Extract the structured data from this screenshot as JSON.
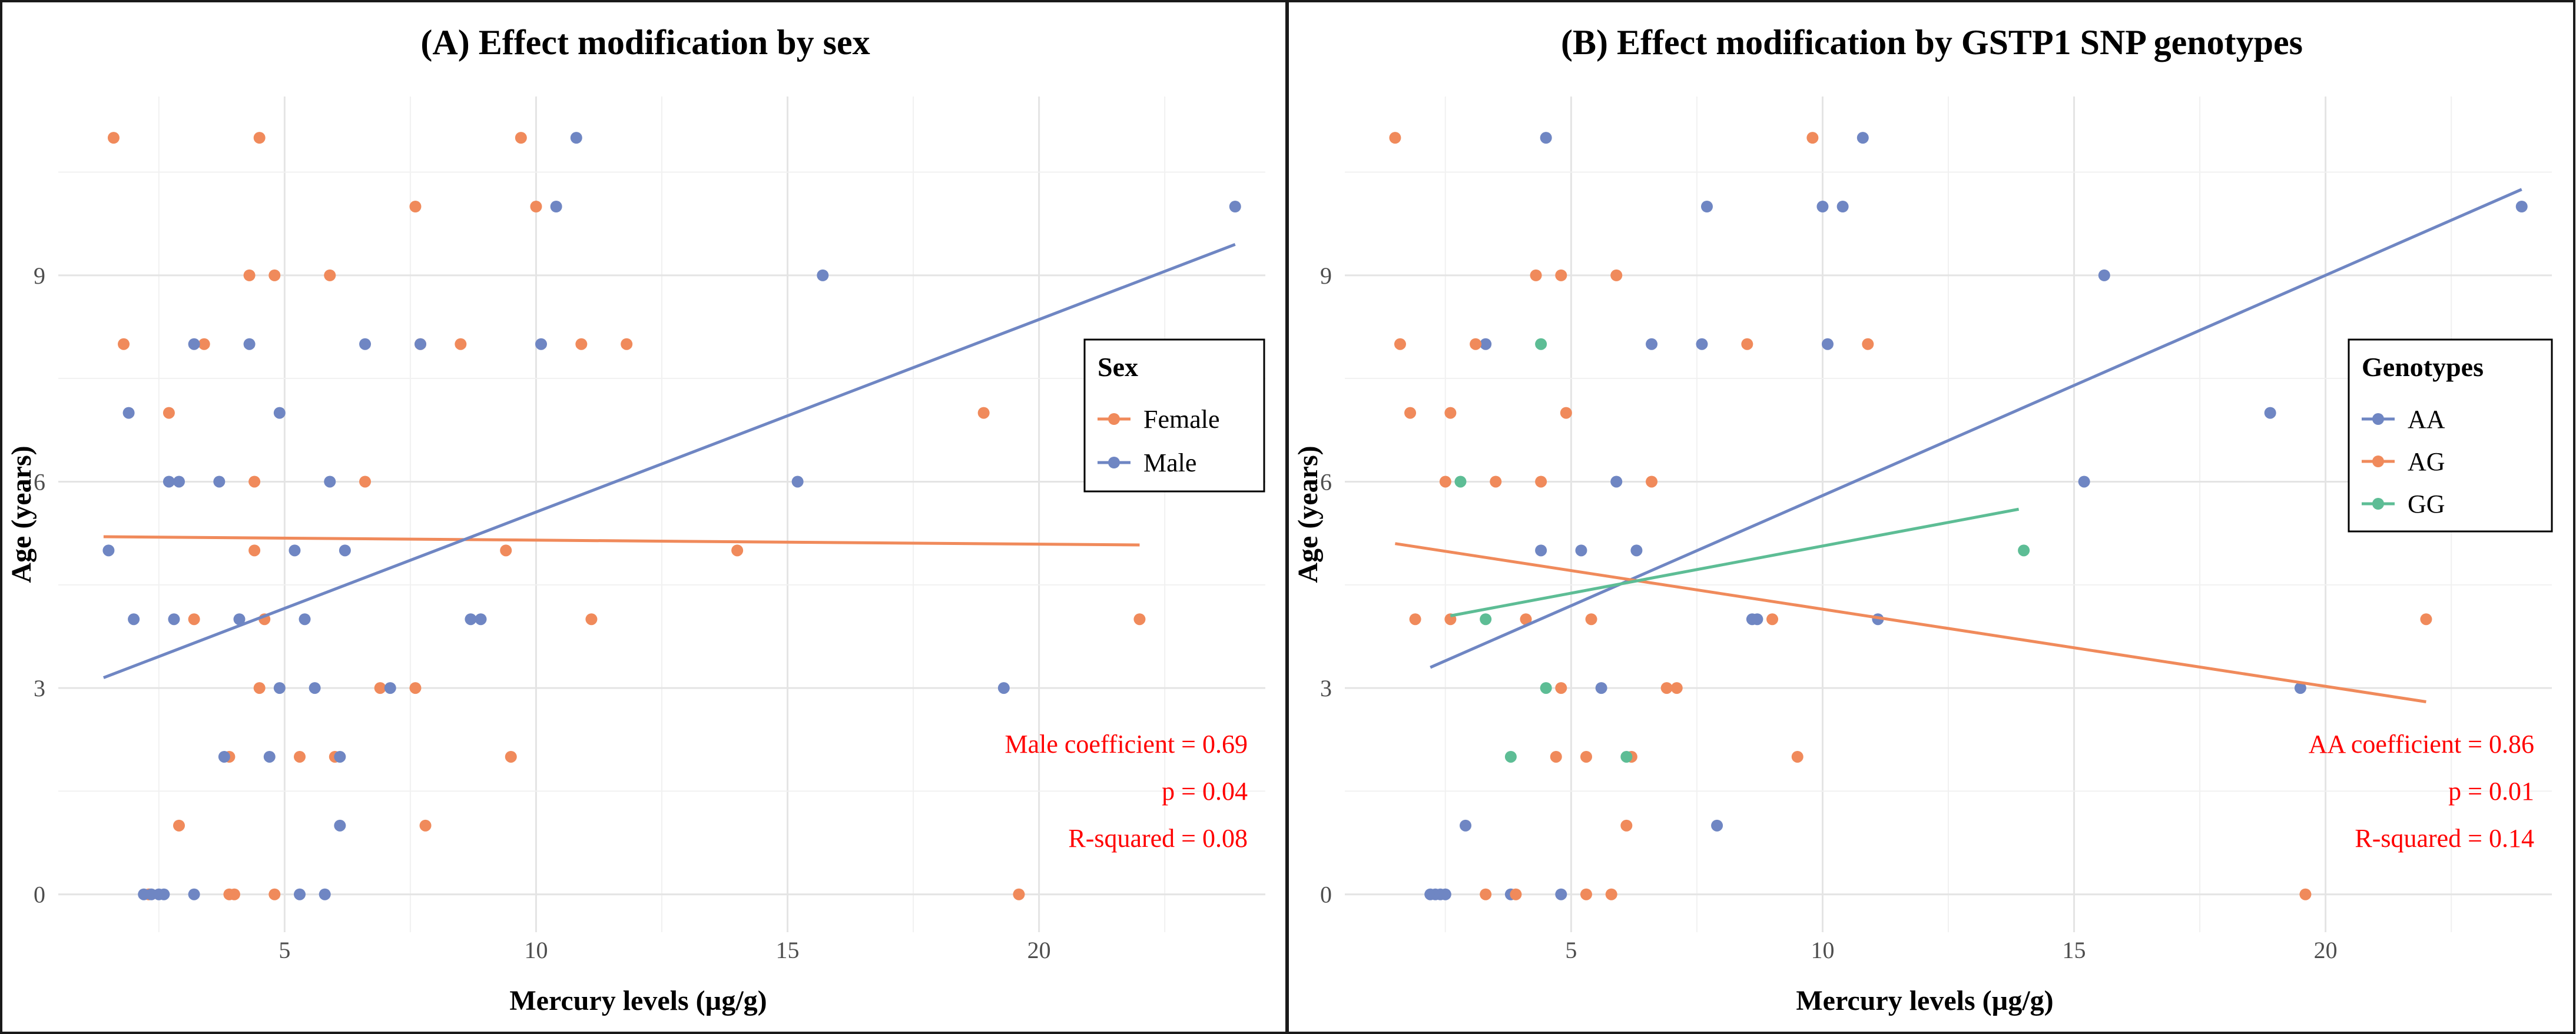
{
  "chart_data": [
    {
      "type": "scatter",
      "title": "(A) Effect modification by sex",
      "xlabel": "Mercury levels (µg/g)",
      "ylabel": "Age (years)",
      "xlim": [
        0.5,
        24.5
      ],
      "ylim": [
        -0.55,
        11.6
      ],
      "xticks": [
        5,
        10,
        15,
        20
      ],
      "yticks": [
        0,
        3,
        6,
        9
      ],
      "grid": true,
      "legend": {
        "title": "Sex",
        "position": "right"
      },
      "annotations": [
        "Male coefficient = 0.69",
        "p = 0.04",
        "R-squared = 0.08"
      ],
      "series": [
        {
          "name": "Female",
          "color": "#F08A5B",
          "points": [
            [
              1.6,
              11
            ],
            [
              4.5,
              11
            ],
            [
              9.7,
              11
            ],
            [
              7.6,
              10
            ],
            [
              10,
              10
            ],
            [
              4.3,
              9
            ],
            [
              4.8,
              9
            ],
            [
              5.9,
              9
            ],
            [
              1.8,
              8
            ],
            [
              3.4,
              8
            ],
            [
              7.7,
              8
            ],
            [
              8.5,
              8
            ],
            [
              10.9,
              8
            ],
            [
              11.8,
              8
            ],
            [
              18.9,
              7
            ],
            [
              2.7,
              7
            ],
            [
              4.4,
              6
            ],
            [
              6.6,
              6
            ],
            [
              4.4,
              5
            ],
            [
              9.4,
              5
            ],
            [
              14,
              5
            ],
            [
              3.2,
              4
            ],
            [
              4.6,
              4
            ],
            [
              11.1,
              4
            ],
            [
              22,
              4
            ],
            [
              4.5,
              3
            ],
            [
              6.9,
              3
            ],
            [
              7.6,
              3
            ],
            [
              3.9,
              2
            ],
            [
              5.3,
              2
            ],
            [
              6,
              2
            ],
            [
              9.5,
              2
            ],
            [
              2.9,
              1
            ],
            [
              7.8,
              1
            ],
            [
              2.3,
              0
            ],
            [
              3.9,
              0
            ],
            [
              4,
              0
            ],
            [
              4.8,
              0
            ],
            [
              19.6,
              0
            ]
          ]
        },
        {
          "name": "Male",
          "color": "#6F86C3",
          "points": [
            [
              10.8,
              11
            ],
            [
              10.4,
              10
            ],
            [
              23.9,
              10
            ],
            [
              15.7,
              9
            ],
            [
              3.2,
              8
            ],
            [
              4.3,
              8
            ],
            [
              6.6,
              8
            ],
            [
              7.7,
              8
            ],
            [
              10.1,
              8
            ],
            [
              1.9,
              7
            ],
            [
              4.9,
              7
            ],
            [
              2.7,
              6
            ],
            [
              2.9,
              6
            ],
            [
              3.7,
              6
            ],
            [
              5.9,
              6
            ],
            [
              15.2,
              6
            ],
            [
              1.5,
              5
            ],
            [
              5.2,
              5
            ],
            [
              6.2,
              5
            ],
            [
              2,
              4
            ],
            [
              2.8,
              4
            ],
            [
              4.1,
              4
            ],
            [
              5.4,
              4
            ],
            [
              8.7,
              4
            ],
            [
              8.9,
              4
            ],
            [
              4.9,
              3
            ],
            [
              5.6,
              3
            ],
            [
              7.1,
              3
            ],
            [
              19.3,
              3
            ],
            [
              3.8,
              2
            ],
            [
              4.7,
              2
            ],
            [
              6.1,
              2
            ],
            [
              6.1,
              1
            ],
            [
              2.2,
              0
            ],
            [
              2.35,
              0
            ],
            [
              2.5,
              0
            ],
            [
              2.6,
              0
            ],
            [
              3.2,
              0
            ],
            [
              5.3,
              0
            ],
            [
              5.8,
              0
            ]
          ]
        }
      ],
      "fits": [
        {
          "series": "Female",
          "color": "#F08A5B",
          "x": [
            1.4,
            22
          ],
          "y": [
            5.2,
            5.08
          ]
        },
        {
          "series": "Male",
          "color": "#6F86C3",
          "x": [
            1.4,
            23.9
          ],
          "y": [
            3.15,
            9.45
          ]
        }
      ]
    },
    {
      "type": "scatter",
      "title": "(B) Effect modification by GSTP1 SNP genotypes",
      "xlabel": "Mercury levels (µg/g)",
      "ylabel": "Age (years)",
      "xlim": [
        0.5,
        24.5
      ],
      "ylim": [
        -0.55,
        11.6
      ],
      "xticks": [
        5,
        10,
        15,
        20
      ],
      "yticks": [
        0,
        3,
        6,
        9
      ],
      "grid": true,
      "legend": {
        "title": "Genotypes",
        "position": "right"
      },
      "annotations": [
        "AA coefficient = 0.86",
        "p = 0.01",
        "R-squared = 0.14"
      ],
      "series": [
        {
          "name": "AA",
          "color": "#6F86C3",
          "points": [
            [
              4.5,
              11
            ],
            [
              10.8,
              11
            ],
            [
              7.7,
              10
            ],
            [
              10,
              10
            ],
            [
              10.4,
              10
            ],
            [
              23.9,
              10
            ],
            [
              15.6,
              9
            ],
            [
              3.3,
              8
            ],
            [
              6.6,
              8
            ],
            [
              7.6,
              8
            ],
            [
              10.1,
              8
            ],
            [
              18.9,
              7
            ],
            [
              5.9,
              6
            ],
            [
              15.2,
              6
            ],
            [
              4.4,
              5
            ],
            [
              5.2,
              5
            ],
            [
              6.3,
              5
            ],
            [
              8.6,
              4
            ],
            [
              8.7,
              4
            ],
            [
              11.1,
              4
            ],
            [
              5.6,
              3
            ],
            [
              19.5,
              3
            ],
            [
              2.9,
              1
            ],
            [
              7.9,
              1
            ],
            [
              2.2,
              0
            ],
            [
              2.3,
              0
            ],
            [
              2.4,
              0
            ],
            [
              2.5,
              0
            ],
            [
              3.8,
              0
            ],
            [
              4.8,
              0
            ]
          ]
        },
        {
          "name": "AG",
          "color": "#F08A5B",
          "points": [
            [
              1.5,
              11
            ],
            [
              9.8,
              11
            ],
            [
              4.3,
              9
            ],
            [
              4.8,
              9
            ],
            [
              5.9,
              9
            ],
            [
              1.6,
              8
            ],
            [
              3.1,
              8
            ],
            [
              8.5,
              8
            ],
            [
              10.9,
              8
            ],
            [
              1.8,
              7
            ],
            [
              2.6,
              7
            ],
            [
              4.9,
              7
            ],
            [
              2.5,
              6
            ],
            [
              3.5,
              6
            ],
            [
              4.4,
              6
            ],
            [
              6.6,
              6
            ],
            [
              1.9,
              4
            ],
            [
              2.6,
              4
            ],
            [
              4.1,
              4
            ],
            [
              5.4,
              4
            ],
            [
              9,
              4
            ],
            [
              22,
              4
            ],
            [
              4.8,
              3
            ],
            [
              6.9,
              3
            ],
            [
              7.1,
              3
            ],
            [
              4.7,
              2
            ],
            [
              5.3,
              2
            ],
            [
              6.2,
              2
            ],
            [
              9.5,
              2
            ],
            [
              6.1,
              1
            ],
            [
              3.3,
              0
            ],
            [
              3.9,
              0
            ],
            [
              5.3,
              0
            ],
            [
              5.8,
              0
            ],
            [
              19.6,
              0
            ]
          ]
        },
        {
          "name": "GG",
          "color": "#5DBD95",
          "points": [
            [
              4.4,
              8
            ],
            [
              2.8,
              6
            ],
            [
              14,
              5
            ],
            [
              3.3,
              4
            ],
            [
              4.5,
              3
            ],
            [
              3.8,
              2
            ],
            [
              6.1,
              2
            ]
          ]
        }
      ],
      "fits": [
        {
          "series": "AA",
          "color": "#6F86C3",
          "x": [
            2.2,
            23.9
          ],
          "y": [
            3.3,
            10.25
          ]
        },
        {
          "series": "AG",
          "color": "#F08A5B",
          "x": [
            1.5,
            22
          ],
          "y": [
            5.1,
            2.8
          ]
        },
        {
          "series": "GG",
          "color": "#5DBD95",
          "x": [
            2.6,
            13.9
          ],
          "y": [
            4.05,
            5.6
          ]
        }
      ]
    }
  ]
}
